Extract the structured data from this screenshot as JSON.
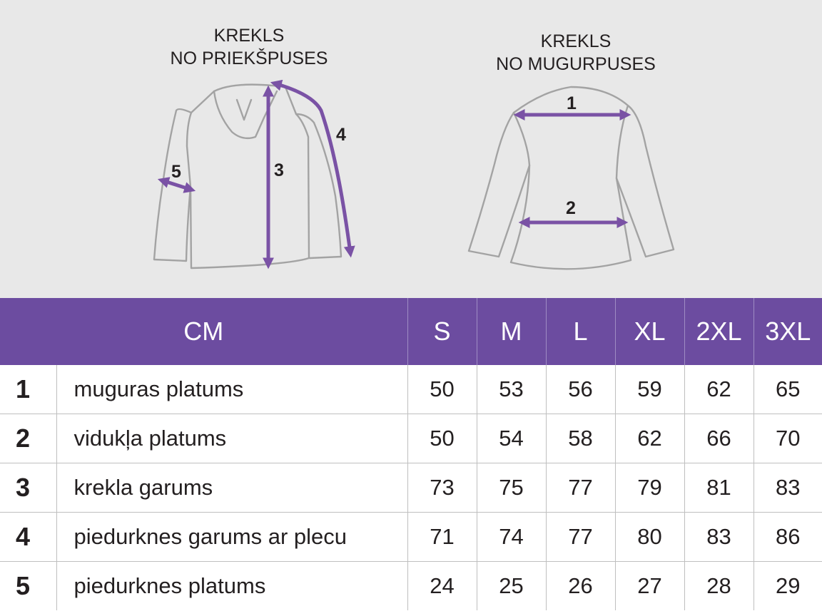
{
  "front_caption": {
    "line1": "KREKLS",
    "line2": "NO PRIEKŠPUSES"
  },
  "back_caption": {
    "line1": "KREKLS",
    "line2": "NO MUGURPUSES"
  },
  "measurement_markers": [
    "1",
    "2",
    "3",
    "4",
    "5"
  ],
  "colors": {
    "accent": "#6c4ca0",
    "measure_line": "#7a52a5",
    "outline": "#a3a3a3",
    "background": "#e8e8e8"
  },
  "table": {
    "unit_header": "CM",
    "sizes": [
      "S",
      "M",
      "L",
      "XL",
      "2XL",
      "3XL"
    ],
    "rows": [
      {
        "num": "1",
        "label": "muguras platums",
        "values": [
          "50",
          "53",
          "56",
          "59",
          "62",
          "65"
        ]
      },
      {
        "num": "2",
        "label": "vidukļa platums",
        "values": [
          "50",
          "54",
          "58",
          "62",
          "66",
          "70"
        ]
      },
      {
        "num": "3",
        "label": "krekla garums",
        "values": [
          "73",
          "75",
          "77",
          "79",
          "81",
          "83"
        ]
      },
      {
        "num": "4",
        "label": "piedurknes garums ar plecu",
        "values": [
          "71",
          "74",
          "77",
          "80",
          "83",
          "86"
        ]
      },
      {
        "num": "5",
        "label": "piedurknes platums",
        "values": [
          "24",
          "25",
          "26",
          "27",
          "28",
          "29"
        ]
      }
    ]
  }
}
